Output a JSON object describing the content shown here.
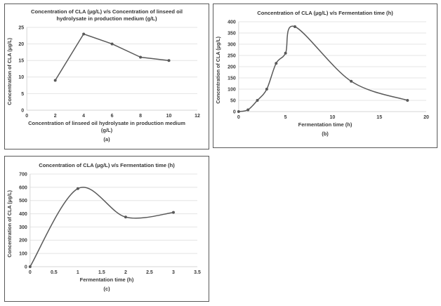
{
  "colors": {
    "line": "#595959",
    "marker": "#595959",
    "grid": "#e4e4e4",
    "axis_line": "#d6d6d6",
    "tick_text": "#3a3a3a",
    "title_text": "#333333",
    "panel_border": "#595959",
    "background": "#ffffff"
  },
  "chart_data": [
    {
      "type": "line",
      "smooth": false,
      "title": "Concentration of CLA (µg/L) v/s Concentration of linseed oil hydrolysate in production medium (g/L)",
      "xlabel": "Concentration of linseed oil hydrolysate in production medium (g/L)",
      "ylabel": "Concentration of CLA (µg/L)",
      "caption": "(a)",
      "x": [
        2,
        4,
        6,
        8,
        10
      ],
      "y": [
        9,
        23,
        20,
        16,
        15
      ],
      "xlim": [
        0,
        12
      ],
      "ylim": [
        0,
        25
      ],
      "xticks": [
        0,
        2,
        4,
        6,
        8,
        10,
        12
      ],
      "yticks": [
        0,
        5,
        10,
        15,
        20,
        25
      ],
      "grid": "horizontal",
      "legend": "none"
    },
    {
      "type": "line",
      "smooth": true,
      "title": "Concentration of CLA (µg/L) v/s Fermentation time (h)",
      "xlabel": "Fermentation time (h)",
      "ylabel": "Concentration of CLA (µg/L)",
      "caption": "(b)",
      "x": [
        0,
        1,
        2,
        3,
        4,
        5,
        6,
        12,
        18
      ],
      "y": [
        0,
        8,
        50,
        100,
        215,
        260,
        378,
        135,
        50
      ],
      "xlim": [
        0,
        20
      ],
      "ylim": [
        0,
        400
      ],
      "xticks": [
        0,
        5,
        10,
        15,
        20
      ],
      "yticks": [
        0,
        50,
        100,
        150,
        200,
        250,
        300,
        350,
        400
      ],
      "grid": "horizontal",
      "legend": "none"
    },
    {
      "type": "line",
      "smooth": true,
      "title": "Concentration of CLA (µg/L) v/s Fermentation time (h)",
      "xlabel": "Fermentation time (h)",
      "ylabel": "Concentration of CLA (µg/L)",
      "caption": "(c)",
      "x": [
        0,
        1,
        2,
        3
      ],
      "y": [
        0,
        590,
        375,
        410
      ],
      "xlim": [
        0,
        3.5
      ],
      "ylim": [
        0,
        700
      ],
      "xticks": [
        0,
        0.5,
        1,
        1.5,
        2,
        2.5,
        3,
        3.5
      ],
      "yticks": [
        0,
        100,
        200,
        300,
        400,
        500,
        600,
        700
      ],
      "grid": "horizontal",
      "legend": "none"
    }
  ]
}
